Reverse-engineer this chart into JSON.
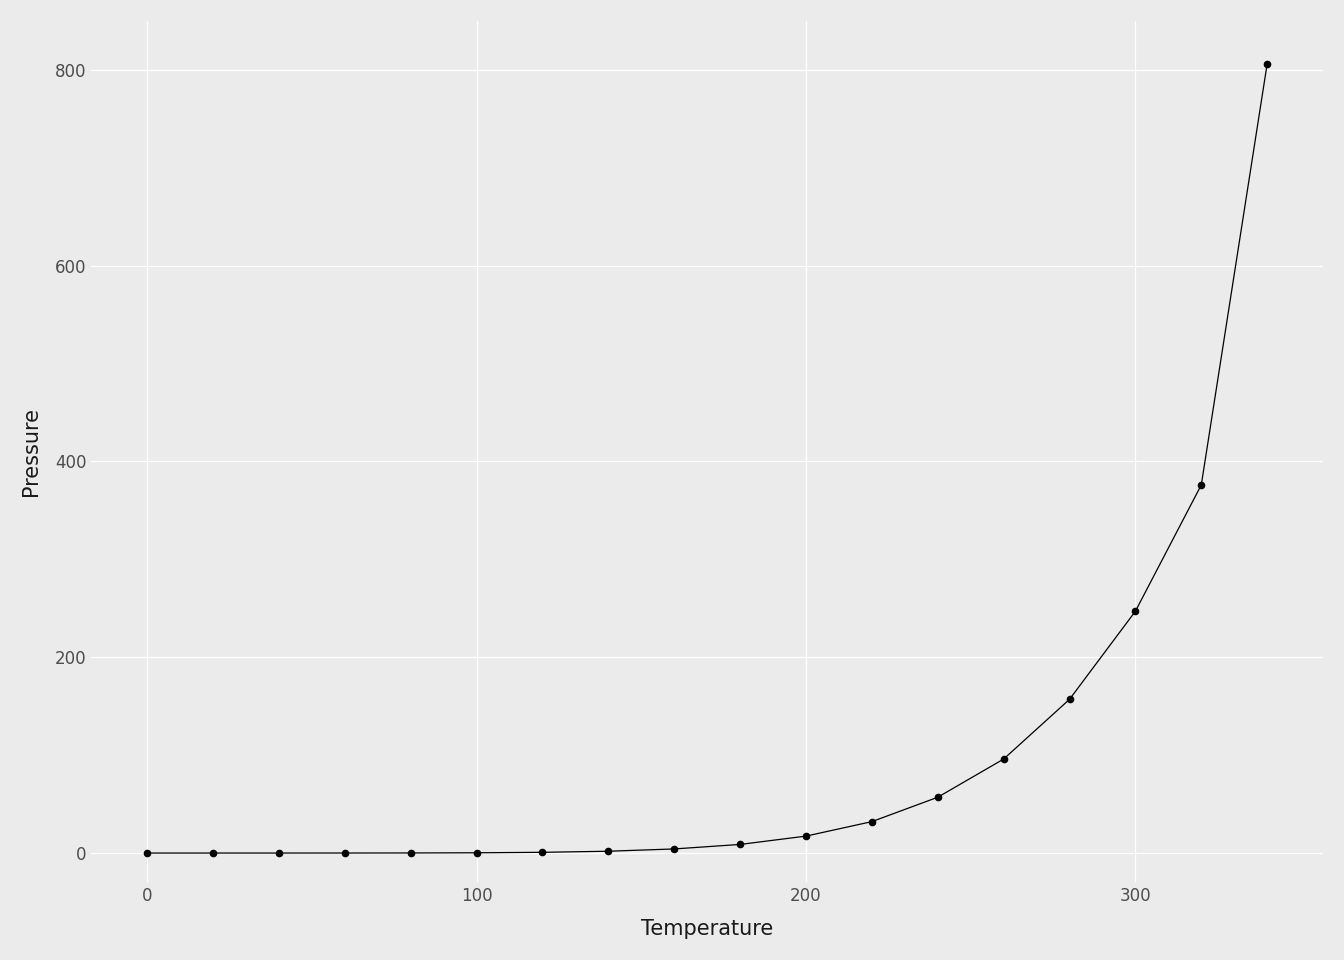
{
  "temperature": [
    0,
    20,
    40,
    60,
    80,
    100,
    120,
    140,
    160,
    180,
    200,
    220,
    240,
    260,
    280,
    300,
    320,
    340
  ],
  "pressure": [
    0.0002,
    0.0012,
    0.006,
    0.03,
    0.09,
    0.27,
    0.75,
    1.85,
    4.2,
    8.8,
    17.3,
    32.1,
    57.0,
    96.0,
    157.0,
    247.0,
    376.0,
    806.0
  ],
  "xlabel": "Temperature",
  "ylabel": "Pressure",
  "background_color": "#EBEBEB",
  "line_color": "#000000",
  "marker_color": "#000000",
  "marker_size": 4.5,
  "line_width": 0.9,
  "ylim": [
    -30,
    850
  ],
  "xlim": [
    -17,
    357
  ],
  "yticks": [
    0,
    200,
    400,
    600,
    800
  ],
  "xticks": [
    0,
    100,
    200,
    300
  ],
  "grid_color": "#FFFFFF",
  "grid_linewidth": 0.9,
  "xlabel_fontsize": 15,
  "ylabel_fontsize": 15,
  "tick_fontsize": 12,
  "tick_color": "#4D4D4D",
  "label_color": "#1A1A1A"
}
